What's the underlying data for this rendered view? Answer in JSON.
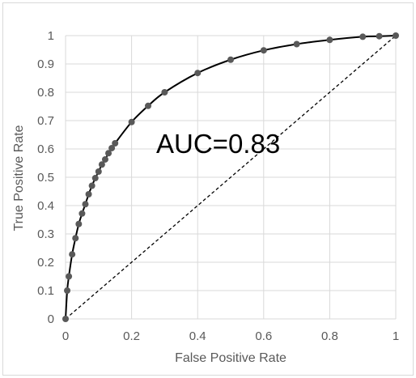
{
  "chart_data": {
    "type": "line",
    "xlabel": "False Positive Rate",
    "ylabel": "True Positive Rate",
    "xlim": [
      0,
      1
    ],
    "ylim": [
      0,
      1
    ],
    "x_ticks": [
      "0",
      "0.2",
      "0.4",
      "0.6",
      "0.8",
      "1"
    ],
    "y_ticks": [
      "0",
      "0.1",
      "0.2",
      "0.3",
      "0.4",
      "0.5",
      "0.6",
      "0.7",
      "0.8",
      "0.9",
      "1"
    ],
    "grid": "major gridlines on both axes",
    "annotation": "AUC=0.83",
    "series": [
      {
        "style": "solid line with circular markers",
        "color": "#000000",
        "marker_color": "#595959",
        "points": [
          [
            0.0,
            0.0
          ],
          [
            0.005,
            0.1
          ],
          [
            0.01,
            0.15
          ],
          [
            0.02,
            0.228
          ],
          [
            0.03,
            0.285
          ],
          [
            0.04,
            0.335
          ],
          [
            0.05,
            0.372
          ],
          [
            0.06,
            0.405
          ],
          [
            0.07,
            0.44
          ],
          [
            0.08,
            0.47
          ],
          [
            0.09,
            0.497
          ],
          [
            0.1,
            0.52
          ],
          [
            0.11,
            0.545
          ],
          [
            0.12,
            0.563
          ],
          [
            0.13,
            0.585
          ],
          [
            0.14,
            0.603
          ],
          [
            0.15,
            0.62
          ],
          [
            0.2,
            0.695
          ],
          [
            0.25,
            0.752
          ],
          [
            0.3,
            0.8
          ],
          [
            0.4,
            0.868
          ],
          [
            0.5,
            0.915
          ],
          [
            0.6,
            0.948
          ],
          [
            0.7,
            0.97
          ],
          [
            0.8,
            0.985
          ],
          [
            0.9,
            0.996
          ],
          [
            0.95,
            0.998
          ],
          [
            1.0,
            1.0
          ]
        ]
      },
      {
        "style": "dashed diagonal",
        "color": "#000000",
        "points": [
          [
            0,
            0
          ],
          [
            1,
            1
          ]
        ]
      }
    ]
  }
}
